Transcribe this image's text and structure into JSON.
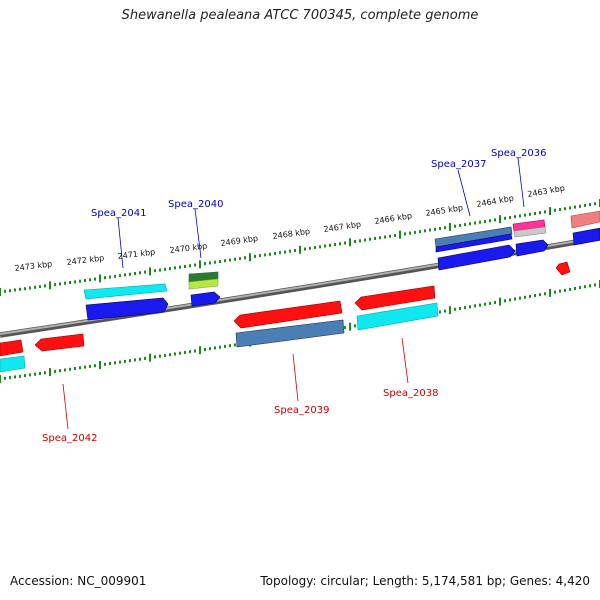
{
  "title": "Shewanella pealeana ATCC 700345, complete genome",
  "footer": {
    "accession": "Accession: NC_009901",
    "summary": "Topology: circular; Length: 5,174,581 bp; Genes: 4,420"
  },
  "colors": {
    "backbone": "#8a8a8a",
    "tick": "#1a8a1a",
    "label_top": "#0000cc",
    "label_bottom": "#cc0000",
    "red": "#ff1010",
    "blue": "#1a1aee",
    "cyan": "#10e8f0",
    "steelblue": "#4a7fb5",
    "green": "#2d7a2d",
    "lime": "#b8e840",
    "pink": "#ff3399",
    "gray": "#c8c8c8",
    "salmon": "#f08080"
  },
  "ruler": {
    "tick_labels": [
      "2473 kbp",
      "2472 kbp",
      "2471 kbp",
      "2470 kbp",
      "2469 kbp",
      "2468 kbp",
      "2467 kbp",
      "2466 kbp",
      "2465 kbp",
      "2464 kbp",
      "2463 kbp"
    ]
  },
  "gene_labels": [
    {
      "text": "Spea_2036",
      "side": "top"
    },
    {
      "text": "Spea_2037",
      "side": "top"
    },
    {
      "text": "Spea_2038",
      "side": "bottom"
    },
    {
      "text": "Spea_2039",
      "side": "bottom"
    },
    {
      "text": "Spea_2040",
      "side": "top"
    },
    {
      "text": "Spea_2041",
      "side": "top"
    },
    {
      "text": "Spea_2042",
      "side": "bottom"
    }
  ]
}
